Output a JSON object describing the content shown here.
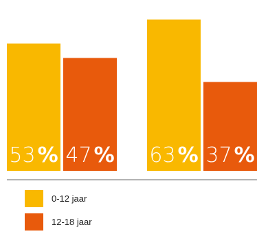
{
  "chart_data": {
    "type": "bar",
    "groups": [
      "",
      ""
    ],
    "series": [
      {
        "name": "0-12 jaar",
        "color": "#F9B800",
        "values": [
          53,
          63
        ]
      },
      {
        "name": "12-18 jaar",
        "color": "#E85A0C",
        "values": [
          47,
          37
        ]
      }
    ],
    "value_labels": [
      [
        "53",
        "47"
      ],
      [
        "63",
        "37"
      ]
    ],
    "value_suffix": "%",
    "ylim": [
      0,
      100
    ],
    "baseline_color": "#9a9a9a"
  }
}
